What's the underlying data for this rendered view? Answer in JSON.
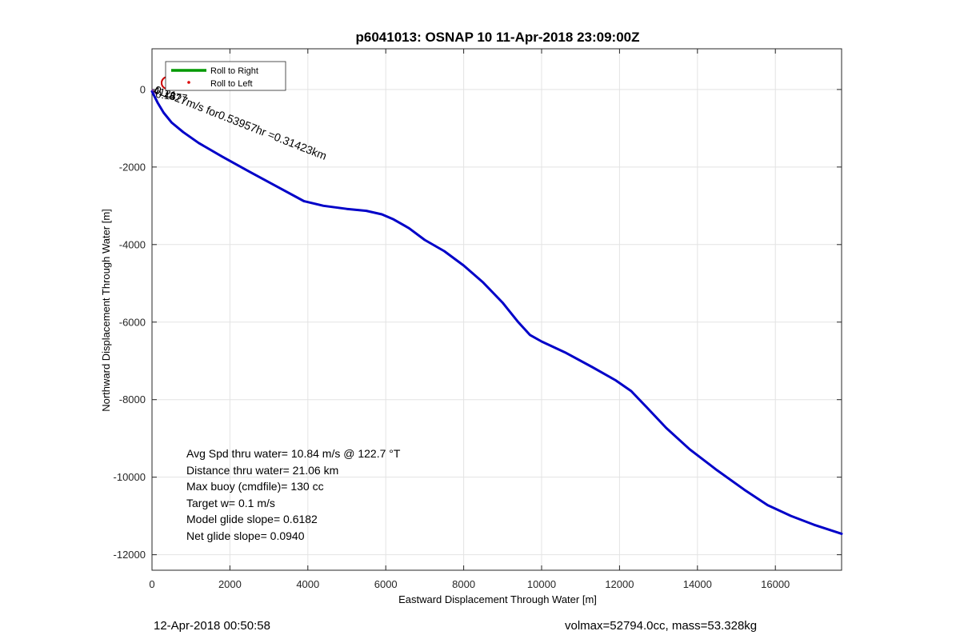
{
  "chart_data": {
    "type": "line",
    "title": "p6041013: OSNAP 10 11-Apr-2018 23:09:00Z",
    "xlabel": "Eastward Displacement Through Water [m]",
    "ylabel": "Northward Displacement Through Water [m]",
    "xlim": [
      0,
      17700
    ],
    "ylim": [
      -12400,
      1050
    ],
    "x_ticks": [
      0,
      2000,
      4000,
      6000,
      8000,
      10000,
      12000,
      14000,
      16000
    ],
    "y_ticks": [
      0,
      -2000,
      -4000,
      -6000,
      -8000,
      -10000,
      -12000
    ],
    "grid": true,
    "legend_position": "top-left",
    "legend": [
      {
        "label": "Roll to Right",
        "color": "#009900",
        "style": "line"
      },
      {
        "label": "Roll to Left",
        "color": "#dd0000",
        "style": "dot"
      }
    ],
    "series": [
      {
        "color": "#0000c8",
        "x": [
          0,
          150,
          300,
          500,
          800,
          1200,
          1800,
          2500,
          3200,
          3900,
          4400,
          5000,
          5500,
          5900,
          6200,
          6600,
          7000,
          7500,
          8000,
          8500,
          9000,
          9400,
          9700,
          10000,
          10600,
          11300,
          11900,
          12300,
          12700,
          13200,
          13800,
          14500,
          15200,
          15800,
          16400,
          17000,
          17700
        ],
        "y": [
          -50,
          -350,
          -600,
          -850,
          -1100,
          -1380,
          -1730,
          -2120,
          -2500,
          -2880,
          -3000,
          -3080,
          -3130,
          -3220,
          -3350,
          -3580,
          -3880,
          -4170,
          -4540,
          -4980,
          -5500,
          -6000,
          -6330,
          -6500,
          -6780,
          -7160,
          -7500,
          -7780,
          -8200,
          -8730,
          -9280,
          -9820,
          -10320,
          -10720,
          -11000,
          -11230,
          -11460
        ]
      }
    ],
    "annotations": {
      "rotated_label": "0.1827m/s for0.53957hr =0.31423km",
      "overlap_label_1": "4121",
      "overlap_label_2": "0.1677",
      "marker_x": 400,
      "marker_y": 170,
      "marker_color": "#cc0000",
      "stats": [
        "Avg Spd thru water= 10.84 m/s @ 122.7 °T",
        "Distance thru water= 21.06 km",
        "Max buoy (cmdfile)= 130 cc",
        "Target w= 0.1 m/s",
        "Model glide slope= 0.6182",
        "Net glide slope= 0.0940"
      ]
    }
  },
  "footer": {
    "timestamp": "12-Apr-2018 00:50:58",
    "info": "volmax=52794.0cc, mass=53.328kg"
  }
}
